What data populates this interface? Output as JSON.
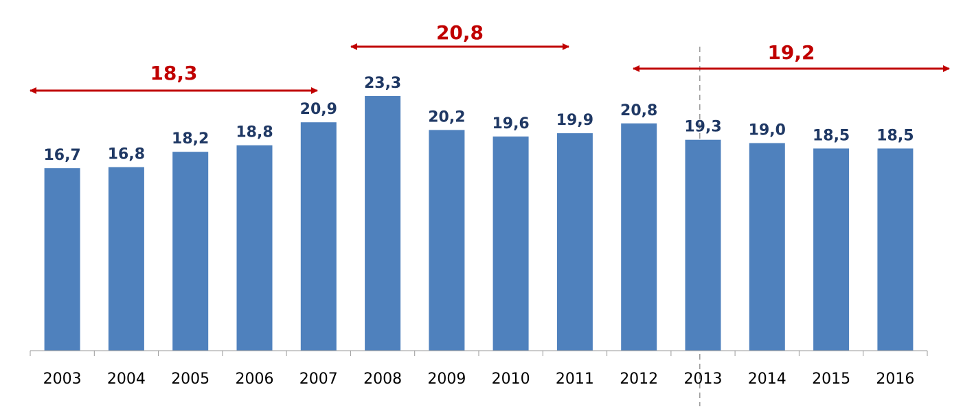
{
  "chart_data": {
    "type": "bar",
    "title": "",
    "xlabel": "",
    "ylabel": "",
    "categories": [
      "2003",
      "2004",
      "2005",
      "2006",
      "2007",
      "2008",
      "2009",
      "2010",
      "2011",
      "2012",
      "2013",
      "2014",
      "2015",
      "2016"
    ],
    "values": [
      16.7,
      16.8,
      18.2,
      18.8,
      20.9,
      23.3,
      20.2,
      19.6,
      19.9,
      20.8,
      19.3,
      19.0,
      18.5,
      18.5
    ],
    "value_labels": [
      "16,7",
      "16,8",
      "18,2",
      "18,8",
      "20,9",
      "23,3",
      "20,2",
      "19,6",
      "19,9",
      "20,8",
      "19,3",
      "19,0",
      "18,5",
      "18,5"
    ],
    "ylim": [
      0,
      23.3
    ],
    "grid": false,
    "bar_color": "#4f81bd",
    "value_label_color": "#1f3864",
    "annotations": [
      {
        "label": "18,3",
        "value": 18.3,
        "from": "2003",
        "to": "2007",
        "color": "#c00000"
      },
      {
        "label": "20,8",
        "value": 20.8,
        "from": "2008",
        "to": "2011",
        "color": "#c00000"
      },
      {
        "label": "19,2",
        "value": 19.2,
        "from": "2012",
        "to": "2016",
        "color": "#c00000"
      }
    ],
    "divider_between": [
      "2012",
      "2013"
    ]
  }
}
